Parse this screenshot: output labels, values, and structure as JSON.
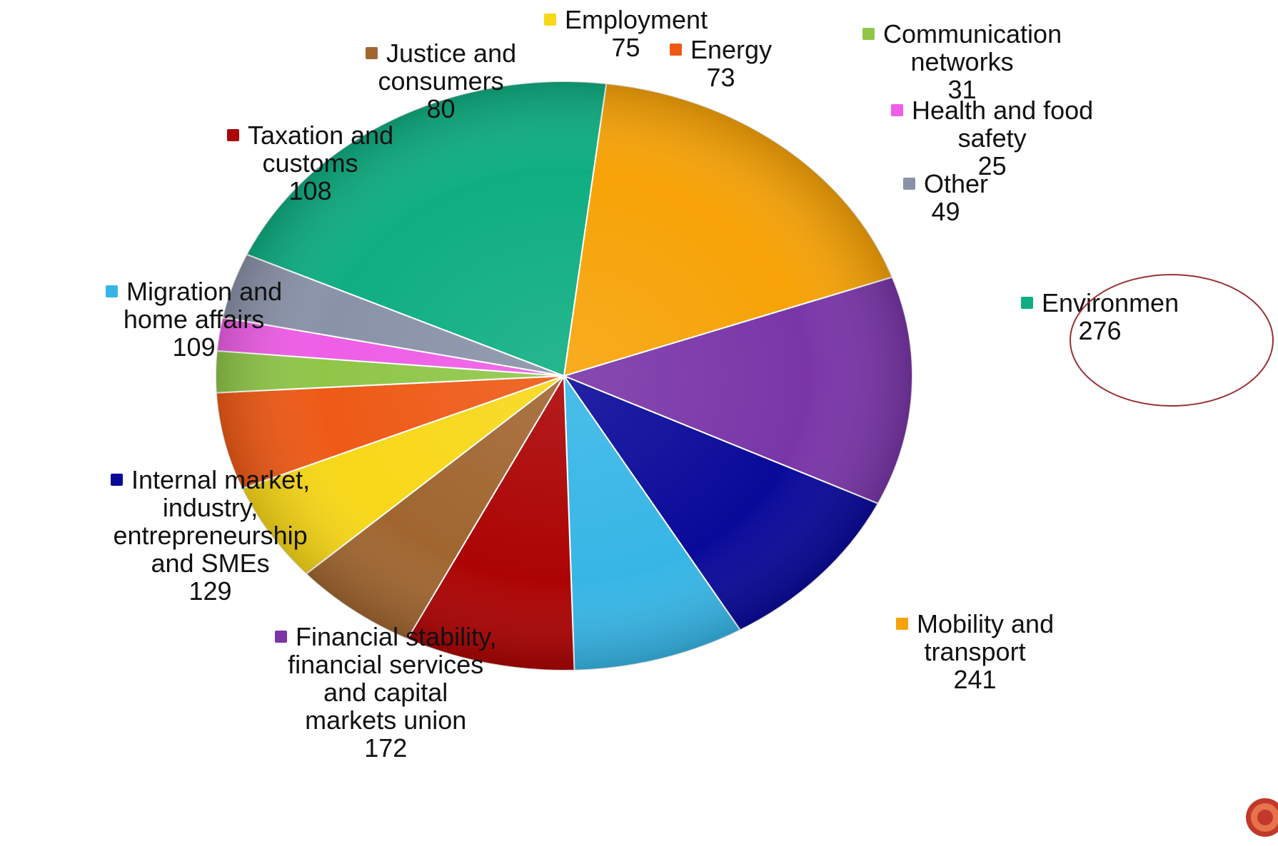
{
  "chart_data": {
    "type": "pie",
    "title": "",
    "slices": [
      {
        "label_lines": [
          "Environmen"
        ],
        "value": 276,
        "color": "#0fae82"
      },
      {
        "label_lines": [
          "Mobility and",
          "transport"
        ],
        "value": 241,
        "color": "#f7a307"
      },
      {
        "label_lines": [
          "Financial stability,",
          "financial services",
          "and capital",
          "markets union"
        ],
        "value": 172,
        "color": "#7a36a8"
      },
      {
        "label_lines": [
          "Internal market,",
          "industry,",
          "entrepreneurship",
          "and SMEs"
        ],
        "value": 129,
        "color": "#0a0a9a"
      },
      {
        "label_lines": [
          "Migration and",
          "home affairs"
        ],
        "value": 109,
        "color": "#37b6e6"
      },
      {
        "label_lines": [
          "Taxation and",
          "customs"
        ],
        "value": 108,
        "color": "#ac0404"
      },
      {
        "label_lines": [
          "Justice and",
          "consumers"
        ],
        "value": 80,
        "color": "#a16630"
      },
      {
        "label_lines": [
          "Employment"
        ],
        "value": 75,
        "color": "#f8d818"
      },
      {
        "label_lines": [
          "Energy"
        ],
        "value": 73,
        "color": "#ee5a16"
      },
      {
        "label_lines": [
          "Communication",
          "networks"
        ],
        "value": 31,
        "color": "#8fc648"
      },
      {
        "label_lines": [
          "Health and food",
          "safety"
        ],
        "value": 25,
        "color": "#ee5ee6"
      },
      {
        "label_lines": [
          "Other"
        ],
        "value": 49,
        "color": "#8a92a8"
      }
    ],
    "highlight": {
      "label": "Environmen",
      "outline_color": "#9b3030"
    },
    "legend": "none",
    "data_labels": "outside"
  }
}
